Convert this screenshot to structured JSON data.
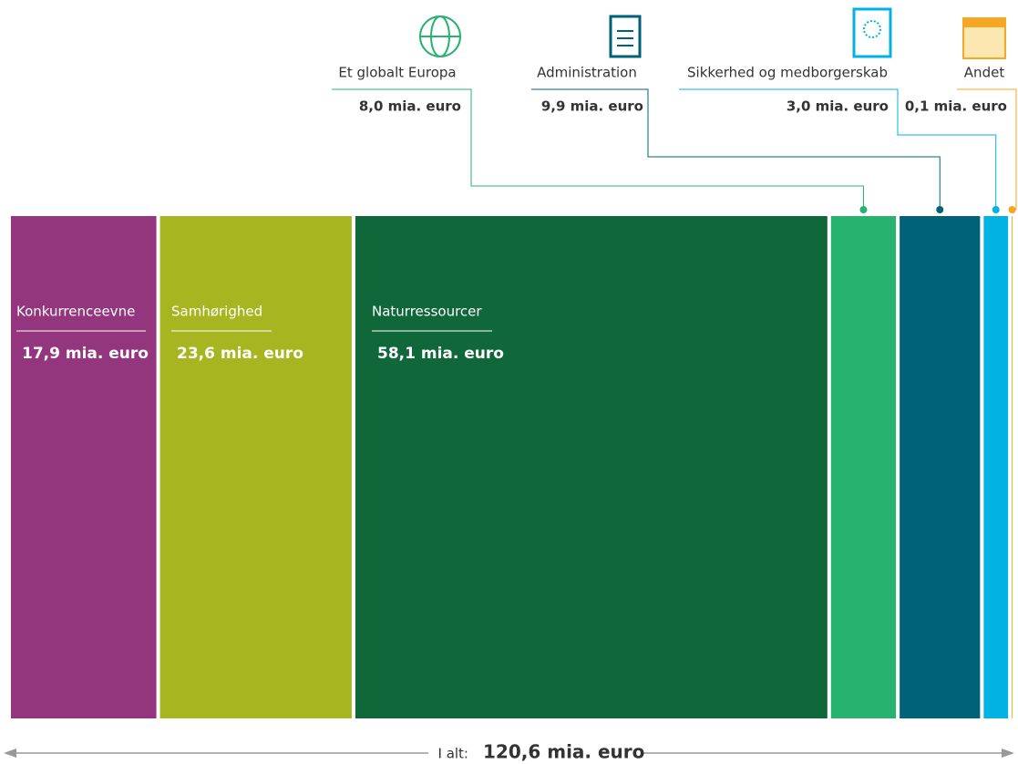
{
  "chart_data": {
    "type": "proportional-bar",
    "categories": [
      "Konkurrenceevne",
      "Samhørighed",
      "Naturressourcer",
      "Et globalt Europa",
      "Administration",
      "Sikkerhed og medborgerskab",
      "Andet"
    ],
    "values": [
      17.9,
      23.6,
      58.1,
      8.0,
      9.9,
      3.0,
      0.1
    ],
    "value_labels": [
      "17,9 mia. euro",
      "23,6 mia. euro",
      "58,1 mia. euro",
      "8,0 mia. euro",
      "9,9 mia. euro",
      "3,0 mia. euro",
      "0,1 mia. euro"
    ],
    "colors": [
      "#93367e",
      "#a7b521",
      "#10683a",
      "#27b26f",
      "#006278",
      "#00b3e3",
      "#f5a623"
    ],
    "total": {
      "label": "I alt:",
      "value": 120.6,
      "value_label": "120,6 mia. euro"
    }
  }
}
